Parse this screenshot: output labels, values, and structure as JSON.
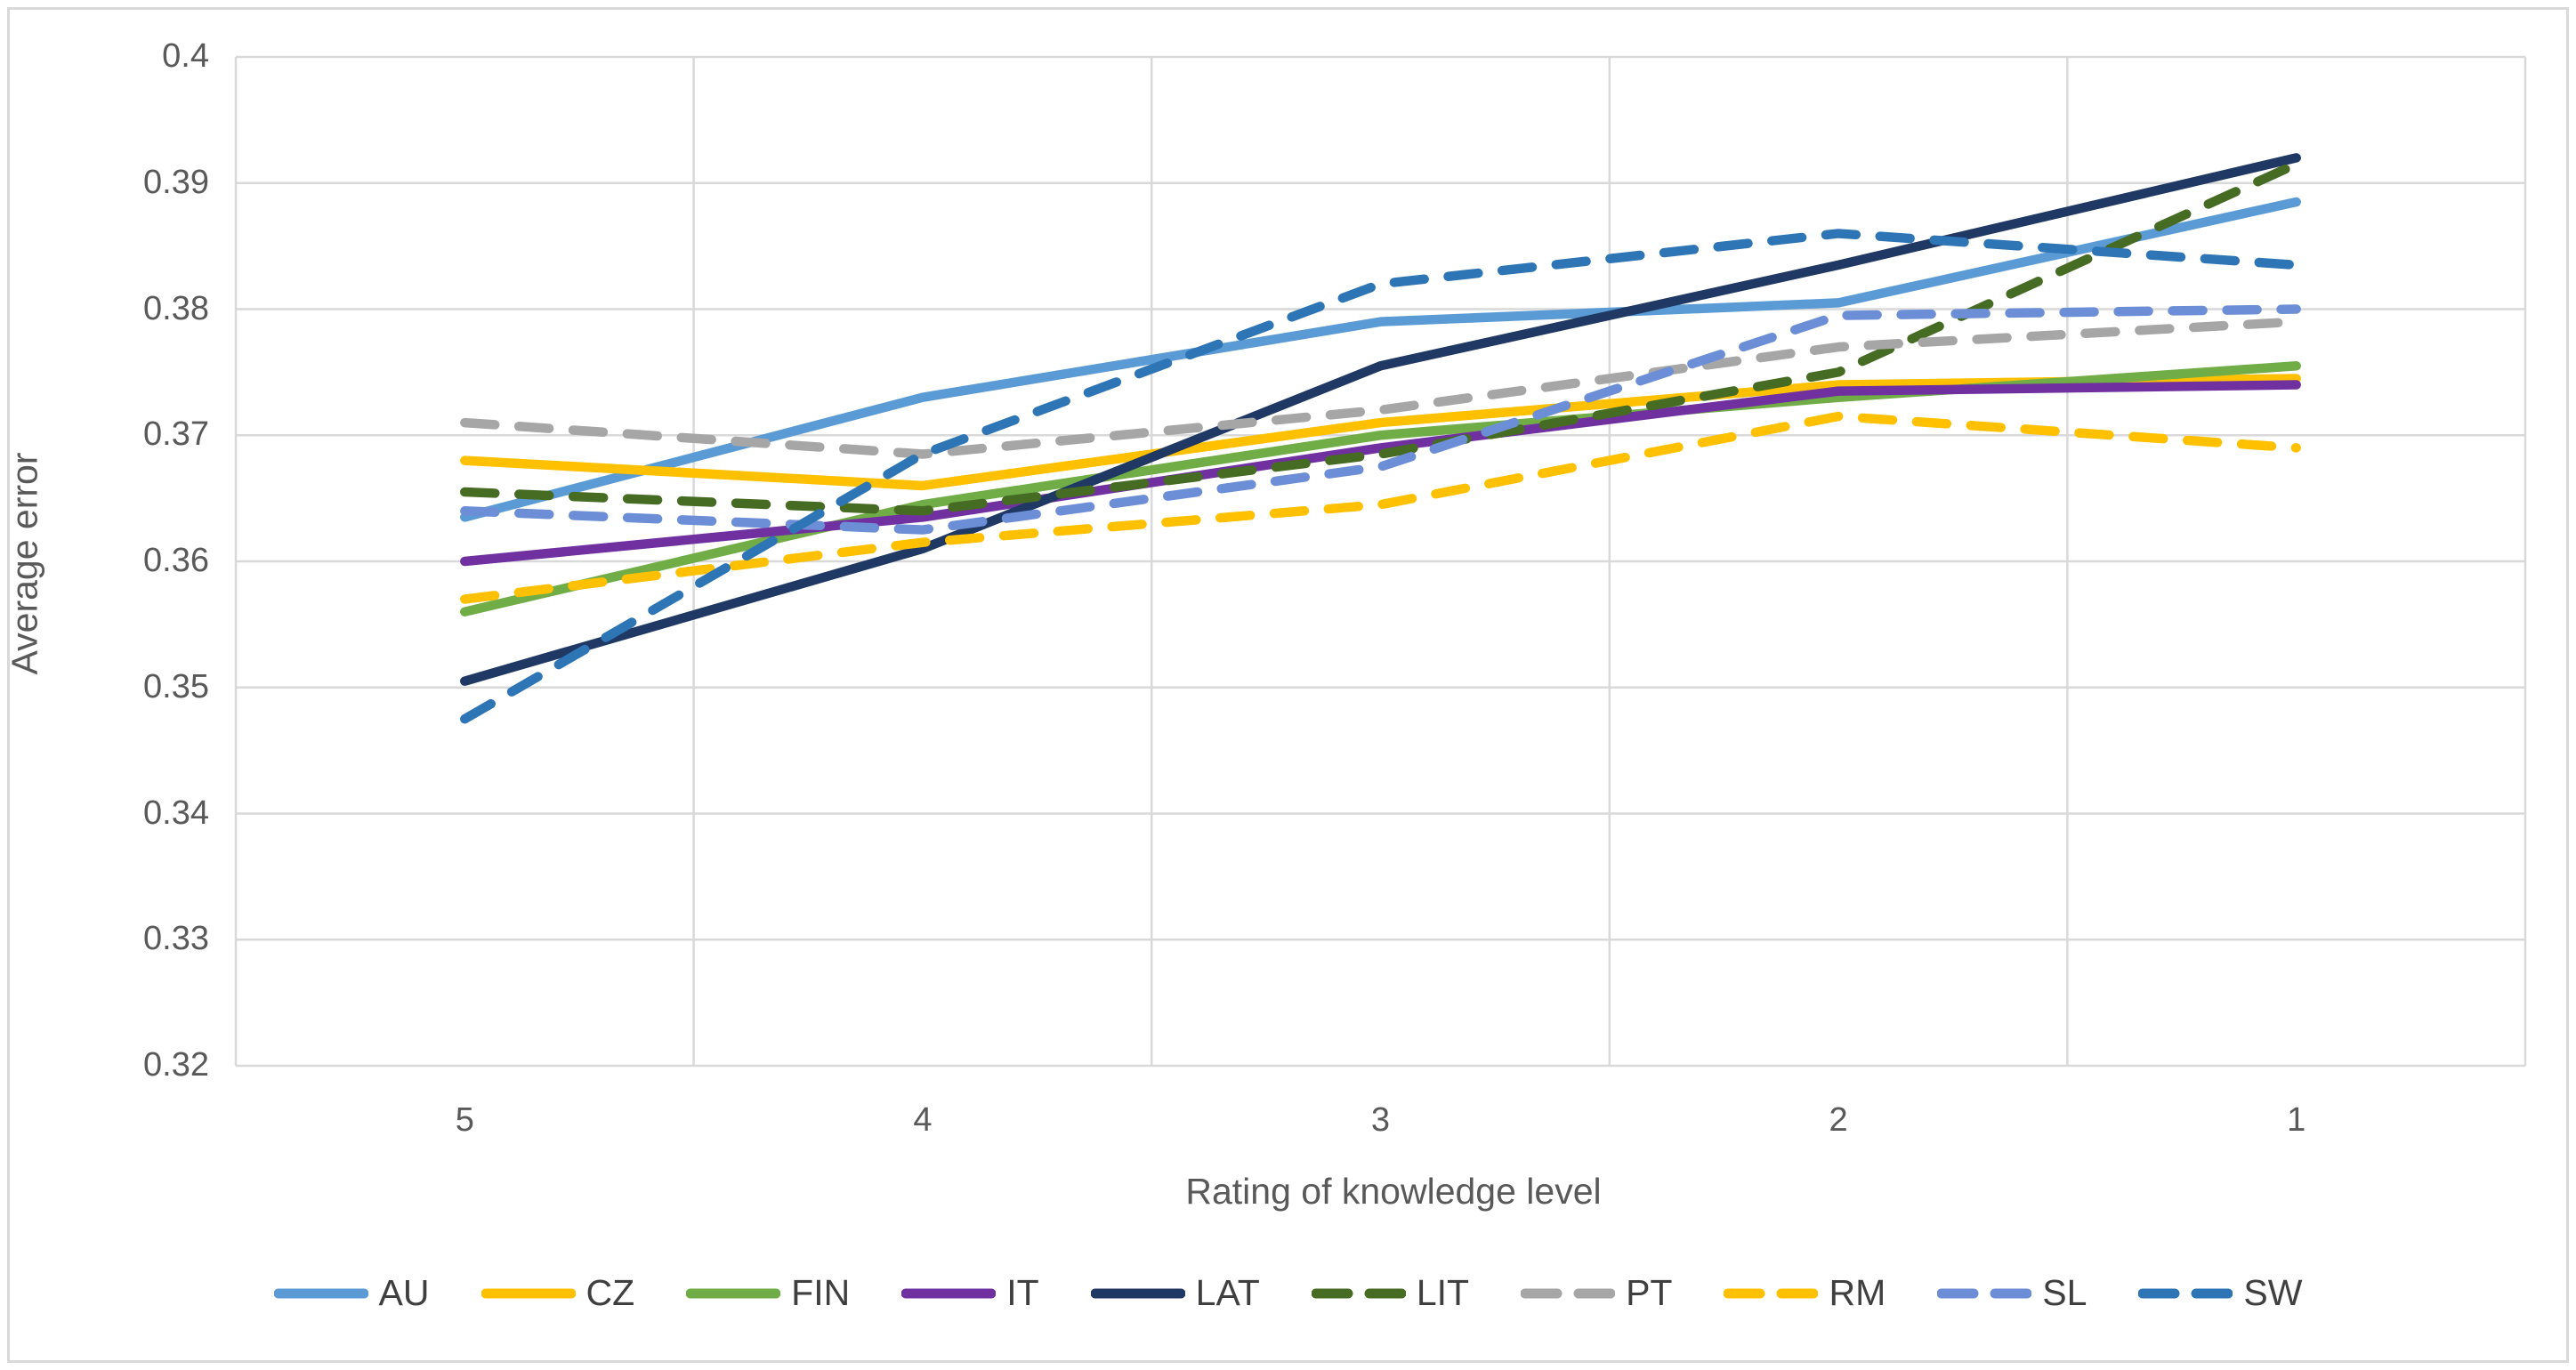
{
  "figure": {
    "background_color": "#ffffff",
    "border_color": "#d9d9d9",
    "gridline_color": "#d9d9d9"
  },
  "y_axis": {
    "title": "Average error",
    "tick_labels": [
      "0.4",
      "0.39",
      "0.38",
      "0.37",
      "0.36",
      "0.35",
      "0.34",
      "0.33",
      "0.32"
    ],
    "tick_values": [
      0.4,
      0.39,
      0.38,
      0.37,
      0.36,
      0.35,
      0.34,
      0.33,
      0.32
    ]
  },
  "x_axis": {
    "title": "Rating of knowledge level",
    "tick_labels": [
      "5",
      "4",
      "3",
      "2",
      "1"
    ]
  },
  "chart_data": {
    "type": "line",
    "title": "",
    "xlabel": "Rating of knowledge level",
    "ylabel": "Average error",
    "categories": [
      "5",
      "4",
      "3",
      "2",
      "1"
    ],
    "ylim": [
      0.32,
      0.4
    ],
    "y_gridline_step": 0.01,
    "grid": "both",
    "legend_position": "bottom",
    "series": [
      {
        "name": "AU",
        "color": "#5b9bd5",
        "style": "solid",
        "values": [
          0.3635,
          0.373,
          0.379,
          0.3805,
          0.3885
        ]
      },
      {
        "name": "CZ",
        "color": "#ffc000",
        "style": "solid",
        "values": [
          0.368,
          0.366,
          0.371,
          0.374,
          0.3745
        ]
      },
      {
        "name": "FIN",
        "color": "#70ad47",
        "style": "solid",
        "values": [
          0.356,
          0.3645,
          0.37,
          0.373,
          0.3755
        ]
      },
      {
        "name": "IT",
        "color": "#7030a0",
        "style": "solid",
        "values": [
          0.36,
          0.3635,
          0.369,
          0.3735,
          0.374
        ]
      },
      {
        "name": "LAT",
        "color": "#1f3864",
        "style": "solid",
        "values": [
          0.3505,
          0.361,
          0.3755,
          0.3835,
          0.392
        ]
      },
      {
        "name": "LIT",
        "color": "#466b23",
        "style": "dashed",
        "values": [
          0.3655,
          0.364,
          0.3685,
          0.375,
          0.3915
        ]
      },
      {
        "name": "PT",
        "color": "#a6a6a6",
        "style": "dashed",
        "values": [
          0.371,
          0.3685,
          0.372,
          0.377,
          0.379
        ]
      },
      {
        "name": "RM",
        "color": "#ffc000",
        "style": "dashed",
        "values": [
          0.357,
          0.3615,
          0.3645,
          0.3715,
          0.369
        ]
      },
      {
        "name": "SL",
        "color": "#6b8ed6",
        "style": "dashed",
        "values": [
          0.364,
          0.3625,
          0.3675,
          0.3795,
          0.38
        ]
      },
      {
        "name": "SW",
        "color": "#2e75b6",
        "style": "dashed",
        "values": [
          0.3475,
          0.3685,
          0.382,
          0.386,
          0.3835
        ]
      }
    ]
  }
}
